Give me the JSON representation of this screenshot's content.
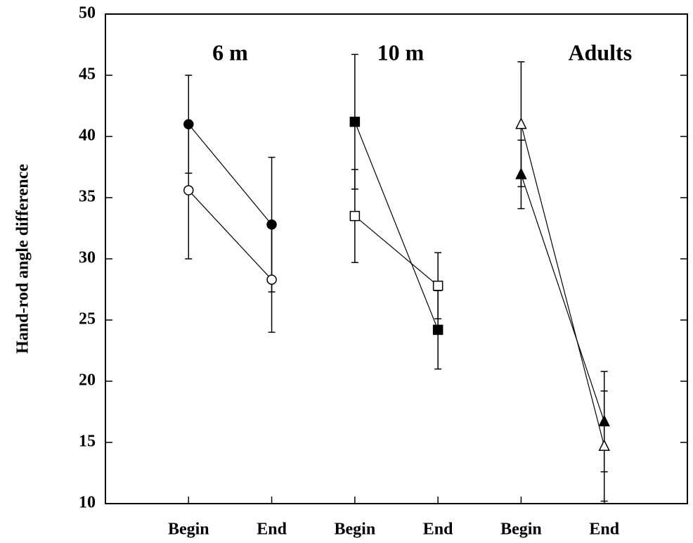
{
  "chart_data": {
    "type": "line",
    "y_label": "Hand-rod angle difference",
    "categories": [
      "Begin",
      "End",
      "Begin",
      "End",
      "Begin",
      "End"
    ],
    "groups": [
      "6 m",
      "10 m",
      "Adults"
    ],
    "ylim": [
      10,
      50
    ],
    "yticks": [
      10,
      15,
      20,
      25,
      30,
      35,
      40,
      45,
      50
    ],
    "color": "#000000",
    "series": [
      {
        "marker": "circle",
        "filled": true,
        "values": [
          41,
          32.8,
          null,
          null,
          null,
          null
        ],
        "errors": [
          4,
          5.5,
          null,
          null,
          null,
          null
        ]
      },
      {
        "marker": "circle",
        "filled": false,
        "values": [
          35.6,
          28.3,
          null,
          null,
          null,
          null
        ],
        "errors": [
          5.6,
          4.3,
          null,
          null,
          null,
          null
        ]
      },
      {
        "marker": "square",
        "filled": true,
        "values": [
          null,
          null,
          41.2,
          24.2,
          null,
          null
        ],
        "errors": [
          null,
          null,
          5.5,
          3.2,
          null,
          null
        ]
      },
      {
        "marker": "square",
        "filled": false,
        "values": [
          null,
          null,
          33.5,
          27.8,
          null,
          null
        ],
        "errors": [
          null,
          null,
          3.8,
          2.7,
          null,
          null
        ]
      },
      {
        "marker": "triangle",
        "filled": true,
        "values": [
          null,
          null,
          null,
          null,
          36.9,
          16.7
        ],
        "errors": [
          null,
          null,
          null,
          null,
          2.8,
          4.1
        ]
      },
      {
        "marker": "triangle",
        "filled": false,
        "values": [
          null,
          null,
          null,
          null,
          41,
          14.7
        ],
        "errors": [
          null,
          null,
          null,
          null,
          5.1,
          4.5
        ]
      }
    ]
  }
}
